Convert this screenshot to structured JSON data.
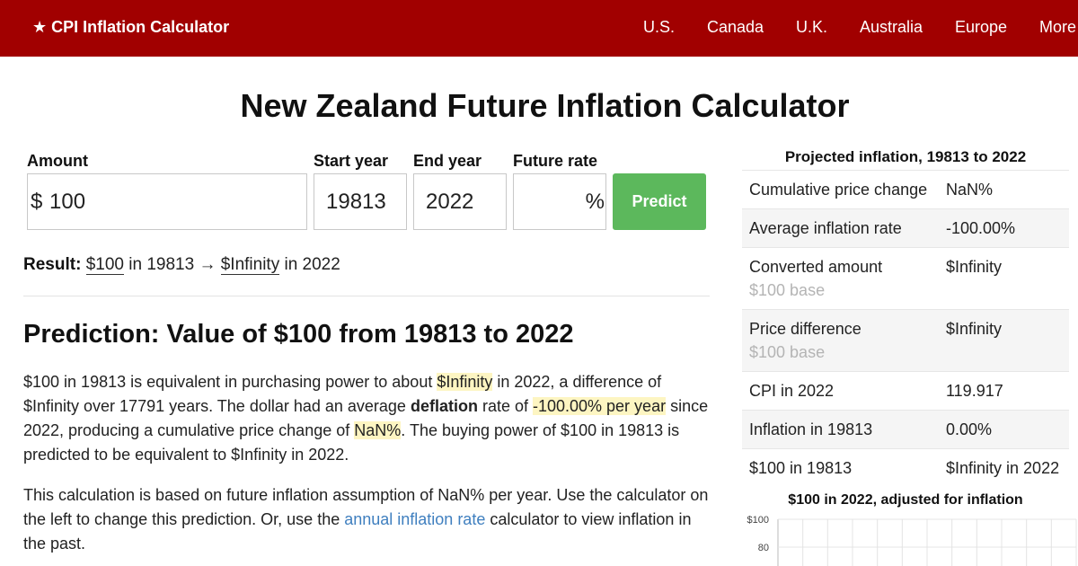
{
  "header": {
    "brand": "★ CPI Inflation Calculator",
    "nav": [
      "U.S.",
      "Canada",
      "U.K.",
      "Australia",
      "Europe",
      "More"
    ]
  },
  "page_title": "New Zealand Future Inflation Calculator",
  "form": {
    "amount_label": "Amount",
    "currency_symbol": "$",
    "amount_value": "100",
    "start_year_label": "Start year",
    "start_year_value": "19813",
    "end_year_label": "End year",
    "end_year_value": "2022",
    "future_rate_label": "Future rate",
    "future_rate_value": "",
    "percent_symbol": "%",
    "predict_label": "Predict"
  },
  "result": {
    "label": "Result:",
    "amount": "$100",
    "in_text_1": "in 19813",
    "arrow": "→",
    "converted": "$Infinity",
    "in_text_2": "in 2022"
  },
  "article": {
    "heading": "Prediction: Value of $100 from 19813 to 2022",
    "p1_a": "$100 in 19813 is equivalent in purchasing power to about ",
    "p1_hl1": "$Infinity",
    "p1_b": " in 2022, a difference of $Infinity over 17791 years. The dollar had an average ",
    "p1_bold": "deflation",
    "p1_c": " rate of ",
    "p1_hl2": "-100.00% per year",
    "p1_d": " since 2022, producing a cumulative price change of ",
    "p1_hl3": "NaN%",
    "p1_e": ". The buying power of $100 in 19813 is predicted to be equivalent to $Infinity in 2022.",
    "p2_a": "This calculation is based on future inflation assumption of NaN% per year. Use the calculator on the left to change this prediction. Or, use the ",
    "p2_link": "annual inflation rate",
    "p2_b": " calculator to view inflation in the past."
  },
  "sidebar": {
    "title": "Projected inflation, 19813 to 2022",
    "rows": [
      {
        "label": "Cumulative price change",
        "sub": "",
        "value": "NaN%"
      },
      {
        "label": "Average inflation rate",
        "sub": "",
        "value": "-100.00%"
      },
      {
        "label": "Converted amount",
        "sub": "$100 base",
        "value": "$Infinity"
      },
      {
        "label": "Price difference",
        "sub": "$100 base",
        "value": "$Infinity"
      },
      {
        "label": "CPI in 2022",
        "sub": "",
        "value": "119.917"
      },
      {
        "label": "Inflation in 19813",
        "sub": "",
        "value": "0.00%"
      },
      {
        "label": "$100 in 19813",
        "sub": "",
        "value": "$Infinity in 2022"
      }
    ]
  },
  "chart_data": {
    "type": "line",
    "title": "$100 in 2022, adjusted for inflation",
    "y_tick_labels": [
      "$100",
      "80"
    ],
    "y_ticks": [
      100,
      80
    ],
    "x": [],
    "series": [],
    "grid": true,
    "colors": {
      "grid": "#e4e4e4",
      "axis": "#bbbbbb"
    }
  },
  "colors": {
    "header_bg": "#a10000",
    "predict_bg": "#5cb85c",
    "highlight": "#fdf5c2",
    "link": "#3f7fbf"
  }
}
